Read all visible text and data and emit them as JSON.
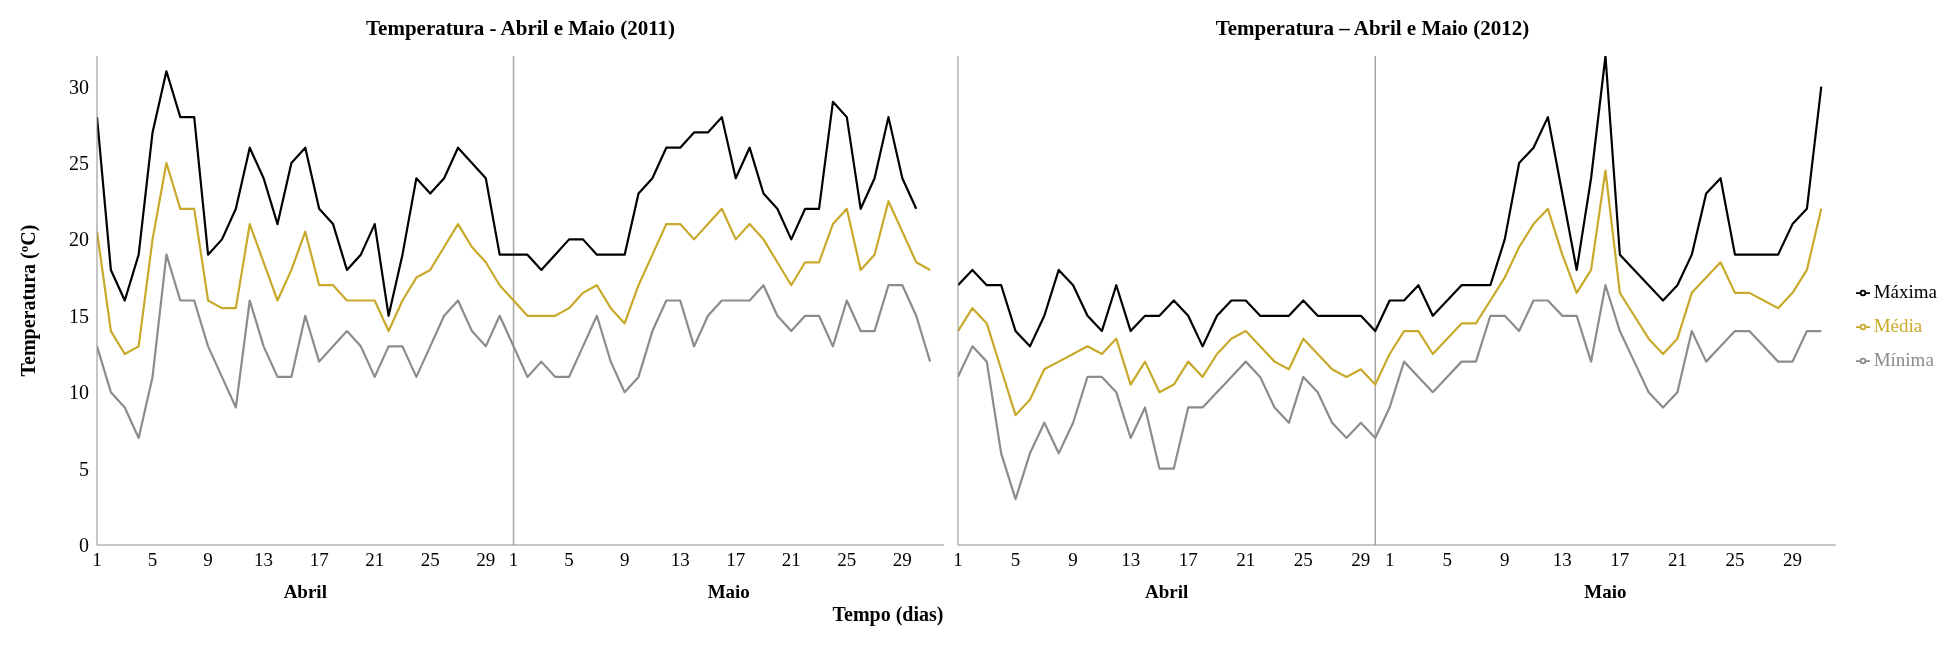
{
  "chart_data": [
    {
      "type": "line",
      "title": "Temperatura - Abril  e Maio (2011)",
      "ylabel": "Temperatura (ºC)",
      "xlabel": "Tempo (dias)",
      "annotations": [
        "Abril",
        "Maio"
      ],
      "x": [
        "--04-01",
        "--04-02",
        "--04-03",
        "--04-04",
        "--04-05",
        "--04-06",
        "--04-07",
        "--04-08",
        "--04-09",
        "--04-10",
        "--04-11",
        "--04-12",
        "--04-13",
        "--04-14",
        "--04-15",
        "--04-16",
        "--04-17",
        "--04-18",
        "--04-19",
        "--04-20",
        "--04-21",
        "--04-22",
        "--04-23",
        "--04-24",
        "--04-25",
        "--04-26",
        "--04-27",
        "--04-28",
        "--04-29",
        "--04-30",
        "--05-01",
        "--05-02",
        "--05-03",
        "--05-04",
        "--05-05",
        "--05-06",
        "--05-07",
        "--05-08",
        "--05-09",
        "--05-10",
        "--05-11",
        "--05-12",
        "--05-13",
        "--05-14",
        "--05-15",
        "--05-16",
        "--05-17",
        "--05-18",
        "--05-19",
        "--05-20",
        "--05-21",
        "--05-22",
        "--05-23",
        "--05-24",
        "--05-25",
        "--05-26",
        "--05-27",
        "--05-28",
        "--05-29",
        "--05-30",
        "--05-31"
      ],
      "series": [
        {
          "color": "#000000",
          "values": [
            28,
            18,
            16,
            19,
            27,
            31,
            28,
            28,
            19,
            20,
            22,
            26,
            24,
            21,
            25,
            26,
            22,
            21,
            18,
            19,
            21,
            15,
            19,
            24,
            23,
            24,
            26,
            25,
            24,
            19,
            19,
            19,
            18,
            19,
            20,
            20,
            19,
            19,
            19,
            23,
            24,
            26,
            26,
            27,
            27,
            28,
            24,
            26,
            23,
            22,
            20,
            22,
            22,
            29,
            28,
            22,
            24,
            28,
            24,
            22,
            null
          ]
        },
        {
          "color": "#c9a92b",
          "values": [
            20.5,
            14,
            12.5,
            13,
            20,
            25,
            22,
            22,
            16,
            15.5,
            15.5,
            21,
            18.5,
            16,
            18,
            20.5,
            17,
            17,
            16,
            16,
            16,
            14,
            16,
            17.5,
            18,
            19.5,
            21,
            19.5,
            18.5,
            17,
            16,
            15,
            15,
            15,
            15.5,
            16.5,
            17,
            15.5,
            14.5,
            17,
            19,
            21,
            21,
            20,
            21,
            22,
            20,
            21,
            20,
            18.5,
            17,
            18.5,
            18.5,
            21,
            22,
            18,
            19,
            22.5,
            20.5,
            18.5,
            18
          ]
        },
        {
          "color": "#8c8c8c",
          "values": [
            13,
            10,
            9,
            7,
            11,
            19,
            16,
            16,
            13,
            11,
            9,
            16,
            13,
            11,
            11,
            15,
            12,
            13,
            14,
            13,
            11,
            13,
            13,
            11,
            13,
            15,
            16,
            14,
            13,
            15,
            13,
            11,
            12,
            11,
            11,
            13,
            15,
            12,
            10,
            11,
            14,
            16,
            16,
            13,
            15,
            16,
            16,
            16,
            17,
            15,
            14,
            15,
            15,
            13,
            16,
            14,
            14,
            17,
            17,
            15,
            12
          ]
        }
      ],
      "xlim": [
        "--04-01",
        "--06-01"
      ],
      "xticks": [
        {
          "value": "--04-01",
          "label": "1"
        },
        {
          "value": "--04-05",
          "label": "5"
        },
        {
          "value": "--04-09",
          "label": "9"
        },
        {
          "value": "--04-13",
          "label": "13"
        },
        {
          "value": "--04-17",
          "label": "17"
        },
        {
          "value": "--04-21",
          "label": "21"
        },
        {
          "value": "--04-25",
          "label": "25"
        },
        {
          "value": "--04-29",
          "label": "29"
        },
        {
          "value": "--05-01",
          "label": "1"
        },
        {
          "value": "--05-05",
          "label": "5"
        },
        {
          "value": "--05-09",
          "label": "9"
        },
        {
          "value": "--05-13",
          "label": "13"
        },
        {
          "value": "--05-17",
          "label": "17"
        },
        {
          "value": "--05-21",
          "label": "21"
        },
        {
          "value": "--05-25",
          "label": "25"
        },
        {
          "value": "--05-29",
          "label": "29"
        }
      ],
      "ylim": [
        0,
        32
      ],
      "yticks": [
        0,
        5,
        10,
        15,
        20,
        25,
        30
      ],
      "ref_lines": [
        {
          "axis": "x",
          "value": "--05-01",
          "color": "#a6a6a6"
        }
      ],
      "grid": false,
      "marker": "none",
      "line_style": "solid"
    },
    {
      "type": "line",
      "title": "Temperatura – Abril e Maio  (2012)",
      "annotations": [
        "Abril",
        "Maio"
      ],
      "x": [
        "--04-01",
        "--04-02",
        "--04-03",
        "--04-04",
        "--04-05",
        "--04-06",
        "--04-07",
        "--04-08",
        "--04-09",
        "--04-10",
        "--04-11",
        "--04-12",
        "--04-13",
        "--04-14",
        "--04-15",
        "--04-16",
        "--04-17",
        "--04-18",
        "--04-19",
        "--04-20",
        "--04-21",
        "--04-22",
        "--04-23",
        "--04-24",
        "--04-25",
        "--04-26",
        "--04-27",
        "--04-28",
        "--04-29",
        "--04-30",
        "--05-01",
        "--05-02",
        "--05-03",
        "--05-04",
        "--05-05",
        "--05-06",
        "--05-07",
        "--05-08",
        "--05-09",
        "--05-10",
        "--05-11",
        "--05-12",
        "--05-13",
        "--05-14",
        "--05-15",
        "--05-16",
        "--05-17",
        "--05-18",
        "--05-19",
        "--05-20",
        "--05-21",
        "--05-22",
        "--05-23",
        "--05-24",
        "--05-25",
        "--05-26",
        "--05-27",
        "--05-28",
        "--05-29",
        "--05-30",
        "--05-31"
      ],
      "series": [
        {
          "name": "Máxima",
          "color": "#000000",
          "values": [
            17,
            18,
            17,
            17,
            14,
            13,
            15,
            18,
            17,
            15,
            14,
            17,
            14,
            15,
            15,
            16,
            15,
            13,
            15,
            16,
            16,
            15,
            15,
            15,
            16,
            15,
            15,
            15,
            15,
            14,
            16,
            16,
            17,
            15,
            16,
            17,
            17,
            17,
            20,
            25,
            26,
            28,
            23,
            18,
            24,
            32,
            19,
            18,
            17,
            16,
            17,
            19,
            23,
            24,
            19,
            19,
            19,
            19,
            21,
            22,
            30
          ]
        },
        {
          "name": "Média",
          "color": "#c9a92b",
          "values": [
            14,
            15.5,
            14.5,
            11.5,
            8.5,
            9.5,
            11.5,
            12,
            12.5,
            13,
            12.5,
            13.5,
            10.5,
            12,
            10,
            10.5,
            12,
            11,
            12.5,
            13.5,
            14,
            13,
            12,
            11.5,
            13.5,
            12.5,
            11.5,
            11,
            11.5,
            10.5,
            12.5,
            14,
            14,
            12.5,
            13.5,
            14.5,
            14.5,
            16,
            17.5,
            19.5,
            21,
            22,
            19,
            16.5,
            18,
            24.5,
            16.5,
            15,
            13.5,
            12.5,
            13.5,
            16.5,
            17.5,
            18.5,
            16.5,
            16.5,
            16,
            15.5,
            16.5,
            18,
            22
          ]
        },
        {
          "name": "Mínima",
          "color": "#8c8c8c",
          "values": [
            11,
            13,
            12,
            6,
            3,
            6,
            8,
            6,
            8,
            11,
            11,
            10,
            7,
            9,
            5,
            5,
            9,
            9,
            10,
            11,
            12,
            11,
            9,
            8,
            11,
            10,
            8,
            7,
            8,
            7,
            9,
            12,
            11,
            10,
            11,
            12,
            12,
            15,
            15,
            14,
            16,
            16,
            15,
            15,
            12,
            17,
            14,
            12,
            10,
            9,
            10,
            14,
            12,
            13,
            14,
            14,
            13,
            12,
            12,
            14,
            14
          ]
        }
      ],
      "xlim": [
        "--04-01",
        "--06-01"
      ],
      "xticks": [
        {
          "value": "--04-01",
          "label": "1"
        },
        {
          "value": "--04-05",
          "label": "5"
        },
        {
          "value": "--04-09",
          "label": "9"
        },
        {
          "value": "--04-13",
          "label": "13"
        },
        {
          "value": "--04-17",
          "label": "17"
        },
        {
          "value": "--04-21",
          "label": "21"
        },
        {
          "value": "--04-25",
          "label": "25"
        },
        {
          "value": "--04-29",
          "label": "29"
        },
        {
          "value": "--05-01",
          "label": "1"
        },
        {
          "value": "--05-05",
          "label": "5"
        },
        {
          "value": "--05-09",
          "label": "9"
        },
        {
          "value": "--05-13",
          "label": "13"
        },
        {
          "value": "--05-17",
          "label": "17"
        },
        {
          "value": "--05-21",
          "label": "21"
        },
        {
          "value": "--05-25",
          "label": "25"
        },
        {
          "value": "--05-29",
          "label": "29"
        }
      ],
      "ylim": [
        0,
        32
      ],
      "yticks": [
        0,
        5,
        10,
        15,
        20,
        25,
        30
      ],
      "tick_labels": "x",
      "ref_lines": [
        {
          "axis": "x",
          "value": "--04-30",
          "color": "#a6a6a6"
        }
      ],
      "grid": false,
      "legend": "right",
      "marker": "none",
      "line_style": "solid"
    }
  ]
}
